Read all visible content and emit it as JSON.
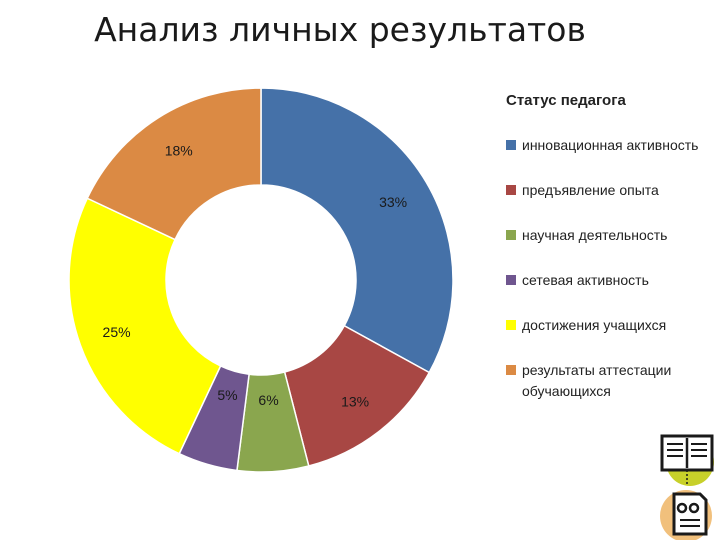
{
  "slide": {
    "title": "Анализ личных результатов"
  },
  "chart_data": {
    "type": "pie",
    "variant": "doughnut",
    "legend_title": "Статус педагога",
    "legend_position": "right",
    "categories": [
      "инновационная активность",
      "предъявление опыта",
      "научная деятельность",
      "сетевая активность",
      "достижения учащихся",
      "результаты аттестации обучающихся"
    ],
    "values": [
      33,
      13,
      6,
      5,
      25,
      18
    ],
    "labels": [
      "33%",
      "13%",
      "6%",
      "5%",
      "25%",
      "18%"
    ],
    "colors": [
      "#4571A8",
      "#A84744",
      "#8AA64E",
      "#6F568F",
      "#FFFF00",
      "#DB8A44"
    ]
  },
  "icons": [
    "open-book-icon",
    "document-icon"
  ]
}
